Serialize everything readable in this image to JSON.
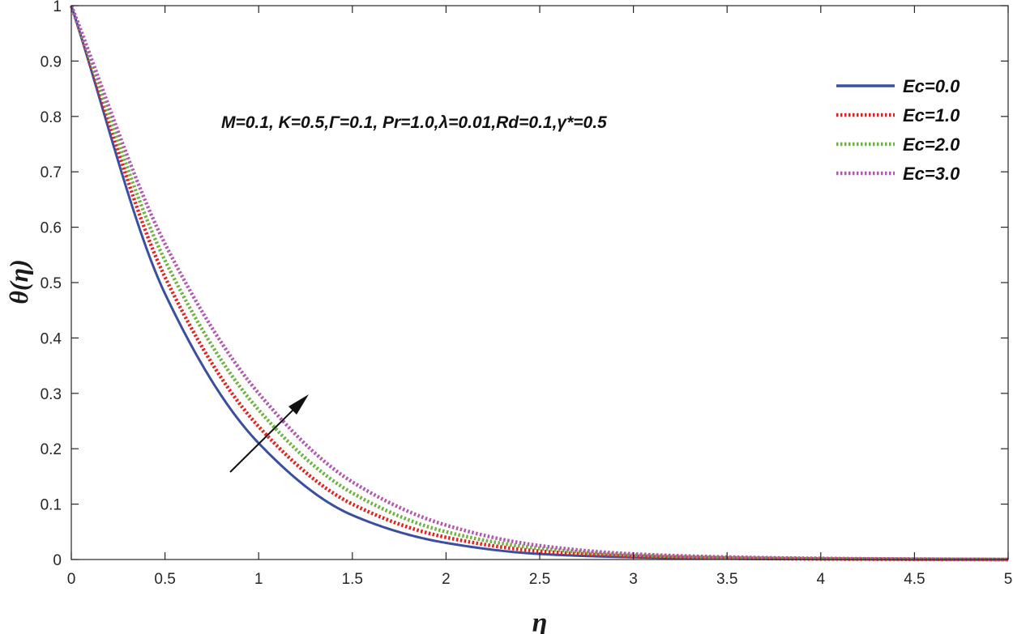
{
  "chart_data": {
    "type": "line",
    "xlabel": "η",
    "ylabel": "θ(η)",
    "xlim": [
      0,
      5
    ],
    "ylim": [
      0,
      1
    ],
    "x_ticks": [
      0,
      0.5,
      1,
      1.5,
      2,
      2.5,
      3,
      3.5,
      4,
      4.5,
      5
    ],
    "x_tick_labels": [
      "0",
      "0.5",
      "1",
      "1.5",
      "2",
      "2.5",
      "3",
      "3.5",
      "4",
      "4.5",
      "5"
    ],
    "y_ticks": [
      0,
      0.1,
      0.2,
      0.3,
      0.4,
      0.5,
      0.6,
      0.7,
      0.8,
      0.9,
      1
    ],
    "y_tick_labels": [
      "0",
      "0.1",
      "0.2",
      "0.3",
      "0.4",
      "0.5",
      "0.6",
      "0.7",
      "0.8",
      "0.9",
      "1"
    ],
    "grid": false,
    "legend_position": "top-right",
    "annotation": "M=0.1, K=0.5,Γ=0.1, Pr=1.0,λ=0.01,Rd=0.1,γ*=0.5",
    "arrow_note": "increasing Ec",
    "x": [
      0,
      0.5,
      1,
      1.5,
      2,
      2.5,
      3,
      3.5,
      4,
      4.5,
      5
    ],
    "series": [
      {
        "name": "Ec=0.0",
        "color": "#3a4fa0",
        "style": "solid",
        "values": [
          1,
          0.48,
          0.21,
          0.08,
          0.03,
          0.01,
          0.004,
          0.0015,
          0.0006,
          0.0002,
          0
        ]
      },
      {
        "name": "Ec=1.0",
        "color": "#e8201c",
        "style": "dotted",
        "values": [
          1,
          0.51,
          0.24,
          0.1,
          0.04,
          0.015,
          0.006,
          0.0025,
          0.001,
          0.0004,
          0
        ]
      },
      {
        "name": "Ec=2.0",
        "color": "#6db33f",
        "style": "dotted",
        "values": [
          1,
          0.54,
          0.27,
          0.12,
          0.05,
          0.02,
          0.008,
          0.0035,
          0.0015,
          0.0006,
          0
        ]
      },
      {
        "name": "Ec=3.0",
        "color": "#b556b0",
        "style": "dotted",
        "values": [
          1,
          0.57,
          0.3,
          0.14,
          0.062,
          0.025,
          0.01,
          0.0045,
          0.002,
          0.0008,
          0
        ]
      }
    ]
  }
}
